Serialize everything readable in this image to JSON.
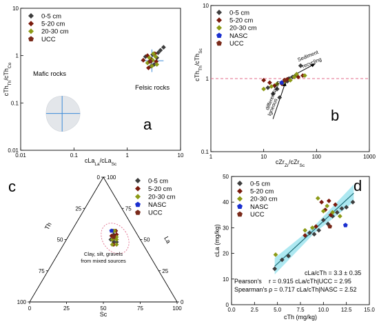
{
  "colors": {
    "s0_5": "#3d3d3d",
    "s5_20": "#7a1a0c",
    "s20_30": "#8c9a16",
    "nasc": "#1a2fcf",
    "ucc": "#7a2a1a",
    "mafic_fill": "#e3e6ea",
    "cross": "#3a8ad8",
    "ref_line": "#e06a8a",
    "regression": "#1e6e78",
    "conf_band": "#9fe4ee"
  },
  "chart_data": [
    {
      "id": "a",
      "type": "scatter",
      "panel_letter": "a",
      "xscale": "log",
      "yscale": "log",
      "xlim": [
        0.01,
        10
      ],
      "ylim": [
        0.01,
        10
      ],
      "xticks": [
        "0.01",
        "0.1",
        "1",
        "10"
      ],
      "yticks": [
        "0.01",
        "0.1",
        "1",
        "10"
      ],
      "xlabel": "cLa/cSc",
      "ylabel": "cTh/cCo",
      "legend": [
        "0-5 cm",
        "5-20 cm",
        "20-30 cm",
        "UCC"
      ],
      "annotations": [
        "Mafic rocks",
        "Felsic rocks"
      ],
      "mafic_region": {
        "center": [
          0.06,
          0.06
        ],
        "x_range": [
          0.03,
          0.13
        ],
        "y_range": [
          0.025,
          0.14
        ]
      },
      "felsic_cross": {
        "center": [
          2.9,
          0.78
        ],
        "x_range": [
          1.8,
          4.8
        ],
        "y_range": [
          0.45,
          1.35
        ]
      },
      "series": [
        {
          "name": "0-5 cm",
          "points": [
            [
              2.2,
              0.95
            ],
            [
              2.6,
              0.75
            ],
            [
              3.0,
              1.05
            ],
            [
              3.2,
              0.65
            ],
            [
              3.6,
              0.9
            ],
            [
              4.2,
              1.3
            ],
            [
              4.8,
              1.5
            ],
            [
              2.8,
              0.6
            ],
            [
              3.8,
              1.15
            ]
          ]
        },
        {
          "name": "5-20 cm",
          "points": [
            [
              2.0,
              0.8
            ],
            [
              2.4,
              1.0
            ],
            [
              2.8,
              0.85
            ],
            [
              3.3,
              1.1
            ],
            [
              2.5,
              0.55
            ],
            [
              3.5,
              0.75
            ]
          ]
        },
        {
          "name": "20-30 cm",
          "points": [
            [
              2.6,
              0.9
            ],
            [
              3.0,
              0.8
            ],
            [
              3.4,
              0.95
            ],
            [
              2.9,
              0.6
            ],
            [
              3.6,
              0.65
            ],
            [
              3.1,
              1.1
            ],
            [
              2.4,
              0.7
            ]
          ]
        },
        {
          "name": "UCC",
          "points": [
            [
              2.7,
              0.75
            ]
          ]
        }
      ]
    },
    {
      "id": "b",
      "type": "scatter",
      "panel_letter": "b",
      "xscale": "log",
      "yscale": "log",
      "xlim": [
        1,
        1000
      ],
      "ylim": [
        0.1,
        10
      ],
      "xticks": [
        "1",
        "10",
        "100",
        "1000"
      ],
      "yticks": [
        "0.1",
        "1",
        "10"
      ],
      "xlabel": "cZr/cSc",
      "ylabel": "cTh/cSc",
      "legend": [
        "0-5 cm",
        "5-20 cm",
        "20-30 cm",
        "NASC",
        "UCC"
      ],
      "annotations": [
        "Sediment recycling",
        "Igneous differentiation"
      ],
      "ref_y": 1,
      "series": [
        {
          "name": "0-5 cm",
          "points": [
            [
              12,
              0.75
            ],
            [
              15,
              0.62
            ],
            [
              18,
              0.72
            ],
            [
              20,
              0.55
            ],
            [
              25,
              0.9
            ],
            [
              30,
              1.0
            ],
            [
              40,
              1.1
            ],
            [
              50,
              1.5
            ],
            [
              28,
              0.92
            ],
            [
              35,
              1.05
            ]
          ]
        },
        {
          "name": "5-20 cm",
          "points": [
            [
              10,
              0.95
            ],
            [
              13,
              0.88
            ],
            [
              16,
              0.8
            ],
            [
              22,
              0.85
            ],
            [
              28,
              0.98
            ],
            [
              45,
              1.05
            ],
            [
              55,
              1.1
            ]
          ]
        },
        {
          "name": "20-30 cm",
          "points": [
            [
              10,
              0.72
            ],
            [
              14,
              0.78
            ],
            [
              18,
              0.85
            ],
            [
              24,
              0.9
            ],
            [
              32,
              0.95
            ],
            [
              38,
              1.05
            ],
            [
              42,
              1.15
            ],
            [
              60,
              1.1
            ]
          ]
        },
        {
          "name": "NASC",
          "points": [
            [
              22,
              0.88
            ]
          ]
        },
        {
          "name": "UCC",
          "points": [
            [
              25,
              0.95
            ]
          ]
        }
      ]
    },
    {
      "id": "c",
      "type": "scatter",
      "panel_letter": "c",
      "ternary": true,
      "corners": [
        "Th",
        "La",
        "Sc"
      ],
      "ticks": [
        "0",
        "25",
        "50",
        "75",
        "100"
      ],
      "legend": [
        "0-5 cm",
        "5-20 cm",
        "20-30 cm",
        "NASC",
        "UCC"
      ],
      "annotation": [
        "Clay, silt, gravels",
        "from mixed sources"
      ],
      "series": [
        {
          "name": "0-5 cm",
          "points": [
            [
              0.18,
              0.32,
              0.5
            ],
            [
              0.16,
              0.3,
              0.54
            ],
            [
              0.19,
              0.33,
              0.48
            ],
            [
              0.15,
              0.28,
              0.57
            ],
            [
              0.2,
              0.3,
              0.5
            ],
            [
              0.17,
              0.35,
              0.48
            ]
          ]
        },
        {
          "name": "5-20 cm",
          "points": [
            [
              0.16,
              0.31,
              0.53
            ],
            [
              0.18,
              0.29,
              0.53
            ],
            [
              0.14,
              0.32,
              0.54
            ],
            [
              0.2,
              0.34,
              0.46
            ],
            [
              0.13,
              0.3,
              0.57
            ]
          ]
        },
        {
          "name": "20-30 cm",
          "points": [
            [
              0.17,
              0.32,
              0.51
            ],
            [
              0.15,
              0.33,
              0.52
            ],
            [
              0.19,
              0.31,
              0.5
            ],
            [
              0.16,
              0.34,
              0.5
            ],
            [
              0.18,
              0.36,
              0.46
            ],
            [
              0.14,
              0.29,
              0.57
            ],
            [
              0.21,
              0.33,
              0.46
            ]
          ]
        },
        {
          "name": "NASC",
          "points": [
            [
              0.16,
              0.27,
              0.57
            ]
          ]
        },
        {
          "name": "UCC",
          "points": [
            [
              0.17,
              0.31,
              0.52
            ]
          ]
        }
      ]
    },
    {
      "id": "d",
      "type": "scatter",
      "panel_letter": "d",
      "xlim": [
        0,
        15
      ],
      "ylim": [
        0,
        50
      ],
      "xticks": [
        "0.0",
        "2.5",
        "5.0",
        "7.5",
        "10.0",
        "12.5",
        "15.0"
      ],
      "yticks": [
        "0",
        "10",
        "20",
        "30",
        "40",
        "50"
      ],
      "xlabel": "cTh (mg/kg)",
      "ylabel": "cLa (mg/kg)",
      "legend": [
        "0-5 cm",
        "5-20 cm",
        "20-30 cm",
        "NASC",
        "UCC"
      ],
      "stats": [
        {
          "label": "",
          "expr": "cLa/cTh",
          "value": "= 3.3 ± 0.35"
        },
        {
          "label": "Pearson's",
          "expr": "r = 0.915 cLa/cTh|UCC",
          "value": "= 2.95"
        },
        {
          "label": "Spearman's",
          "expr": "ρ = 0.717 cLa/cTh|NASC",
          "value": "= 2.52"
        }
      ],
      "regression": {
        "x": [
          4.7,
          13.3
        ],
        "y": [
          15.0,
          43.5
        ]
      },
      "series": [
        {
          "name": "0-5 cm",
          "points": [
            [
              4.7,
              14.0
            ],
            [
              5.5,
              17.5
            ],
            [
              6.2,
              19.0
            ],
            [
              8.5,
              28.0
            ],
            [
              9.0,
              27.5
            ],
            [
              9.5,
              29.0
            ],
            [
              10.0,
              33.0
            ],
            [
              10.5,
              31.5
            ],
            [
              11.0,
              34.5
            ],
            [
              11.5,
              36.0
            ],
            [
              12.0,
              37.5
            ],
            [
              13.2,
              40.0
            ],
            [
              12.5,
              38.0
            ]
          ]
        },
        {
          "name": "5-20 cm",
          "points": [
            [
              8.0,
              27.0
            ],
            [
              9.2,
              30.5
            ],
            [
              9.8,
              40.0
            ],
            [
              10.2,
              37.0
            ],
            [
              10.8,
              35.0
            ],
            [
              11.3,
              39.0
            ],
            [
              10.6,
              40.5
            ]
          ]
        },
        {
          "name": "20-30 cm",
          "points": [
            [
              4.8,
              19.5
            ],
            [
              8.0,
              29.0
            ],
            [
              8.8,
              30.0
            ],
            [
              9.4,
              41.5
            ],
            [
              10.0,
              36.5
            ],
            [
              10.4,
              38.5
            ],
            [
              11.0,
              36.0
            ],
            [
              11.8,
              34.5
            ]
          ]
        },
        {
          "name": "NASC",
          "points": [
            [
              12.4,
              31.0
            ]
          ]
        },
        {
          "name": "UCC",
          "points": [
            [
              10.7,
              30.5
            ]
          ]
        }
      ]
    }
  ]
}
